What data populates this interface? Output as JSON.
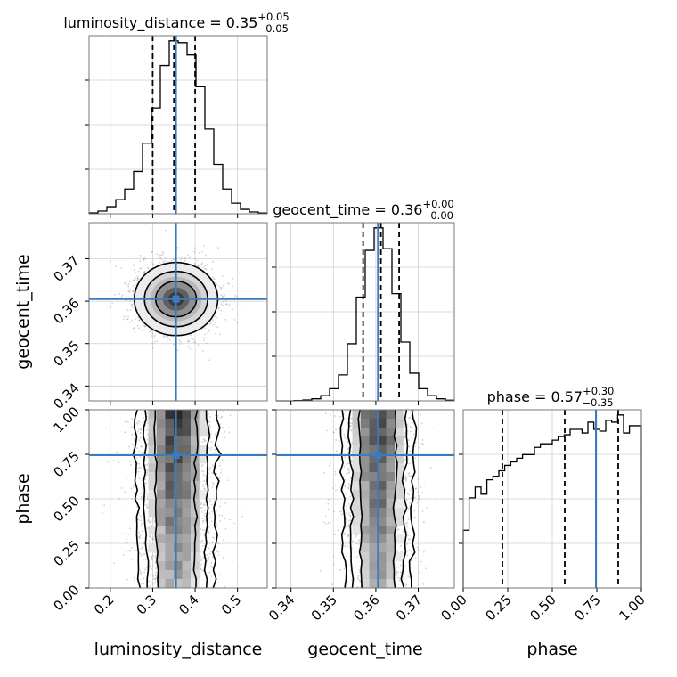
{
  "chart_data": {
    "type": "corner",
    "parameters": [
      "luminosity_distance",
      "geocent_time",
      "phase"
    ],
    "true_values": {
      "luminosity_distance": 0.355,
      "geocent_time": 0.3605,
      "phase": 0.745
    },
    "ranges": {
      "luminosity_distance": [
        0.15,
        0.57
      ],
      "geocent_time": [
        0.3365,
        0.3785
      ],
      "phase": [
        0.0,
        1.0
      ]
    },
    "ticks": {
      "luminosity_distance": {
        "values": [
          0.2,
          0.3,
          0.4,
          0.5
        ],
        "labels": [
          "0.2",
          "0.3",
          "0.4",
          "0.5"
        ]
      },
      "geocent_time": {
        "values": [
          0.34,
          0.35,
          0.36,
          0.37
        ],
        "labels": [
          "0.34",
          "0.35",
          "0.36",
          "0.37"
        ]
      },
      "phase": {
        "values": [
          0.0,
          0.25,
          0.5,
          0.75,
          1.0
        ],
        "labels": [
          "0.00",
          "0.25",
          "0.50",
          "0.75",
          "1.00"
        ]
      }
    },
    "axis_labels": {
      "x": [
        "luminosity_distance",
        "geocent_time",
        "phase"
      ],
      "y": [
        "geocent_time",
        "phase"
      ]
    },
    "diagonal_titles": [
      {
        "param": "luminosity_distance",
        "text": "luminosity_distance = 0.35",
        "plus": "+0.05",
        "minus": "−0.05"
      },
      {
        "param": "geocent_time",
        "text": "geocent_time = 0.36",
        "plus": "+0.00",
        "minus": "−0.00"
      },
      {
        "param": "phase",
        "text": "phase = 0.57",
        "plus": "+0.30",
        "minus": "−0.35"
      }
    ],
    "quantiles": {
      "luminosity_distance": [
        0.3,
        0.35,
        0.4
      ],
      "geocent_time": [
        0.357,
        0.3612,
        0.3655
      ],
      "phase": [
        0.22,
        0.57,
        0.87
      ]
    },
    "histograms": {
      "luminosity_distance": {
        "edges": [
          0.15,
          0.171,
          0.192,
          0.213,
          0.234,
          0.255,
          0.276,
          0.297,
          0.318,
          0.339,
          0.36,
          0.381,
          0.402,
          0.423,
          0.444,
          0.465,
          0.486,
          0.507,
          0.528,
          0.549,
          0.57
        ],
        "counts": [
          0.005,
          0.015,
          0.04,
          0.08,
          0.14,
          0.24,
          0.4,
          0.6,
          0.84,
          0.98,
          0.97,
          0.9,
          0.72,
          0.48,
          0.28,
          0.14,
          0.06,
          0.025,
          0.01,
          0.004
        ]
      },
      "geocent_time": {
        "edges": [
          0.3365,
          0.3386,
          0.3407,
          0.3428,
          0.3449,
          0.347,
          0.3491,
          0.3512,
          0.3533,
          0.3554,
          0.3575,
          0.3596,
          0.3617,
          0.3638,
          0.3659,
          0.368,
          0.3701,
          0.3722,
          0.3743,
          0.3764,
          0.3785
        ],
        "counts": [
          0.0,
          0.0,
          0.002,
          0.005,
          0.012,
          0.03,
          0.07,
          0.15,
          0.33,
          0.6,
          0.87,
          1.0,
          0.88,
          0.62,
          0.34,
          0.16,
          0.07,
          0.03,
          0.012,
          0.004
        ]
      },
      "phase": {
        "edges": [
          0.0,
          0.033,
          0.067,
          0.1,
          0.133,
          0.167,
          0.2,
          0.233,
          0.267,
          0.3,
          0.333,
          0.367,
          0.4,
          0.433,
          0.467,
          0.5,
          0.533,
          0.567,
          0.6,
          0.633,
          0.667,
          0.7,
          0.733,
          0.767,
          0.8,
          0.833,
          0.867,
          0.9,
          0.933,
          0.967,
          1.0
        ],
        "counts": [
          0.32,
          0.5,
          0.56,
          0.52,
          0.6,
          0.62,
          0.65,
          0.68,
          0.7,
          0.72,
          0.74,
          0.74,
          0.78,
          0.8,
          0.8,
          0.82,
          0.84,
          0.85,
          0.88,
          0.88,
          0.86,
          0.92,
          0.88,
          0.87,
          0.93,
          0.92,
          0.96,
          0.86,
          0.9,
          0.9
        ]
      }
    },
    "posterior_2d": {
      "geocent_time_vs_luminosity_distance": {
        "x_param": "luminosity_distance",
        "y_param": "geocent_time",
        "center": [
          0.355,
          0.3605
        ],
        "sigma": [
          0.048,
          0.0042
        ]
      },
      "phase_vs_luminosity_distance": {
        "x_param": "luminosity_distance",
        "y_param": "phase",
        "center": [
          0.355,
          0.55
        ],
        "sigma": [
          0.048,
          0.35
        ]
      },
      "phase_vs_geocent_time": {
        "x_param": "geocent_time",
        "y_param": "phase",
        "center": [
          0.3605,
          0.55
        ],
        "sigma": [
          0.0042,
          0.35
        ]
      }
    },
    "grid": true,
    "line_color": "#3a7bbf",
    "contour_color": "#000000",
    "hist_color": "#000000"
  }
}
